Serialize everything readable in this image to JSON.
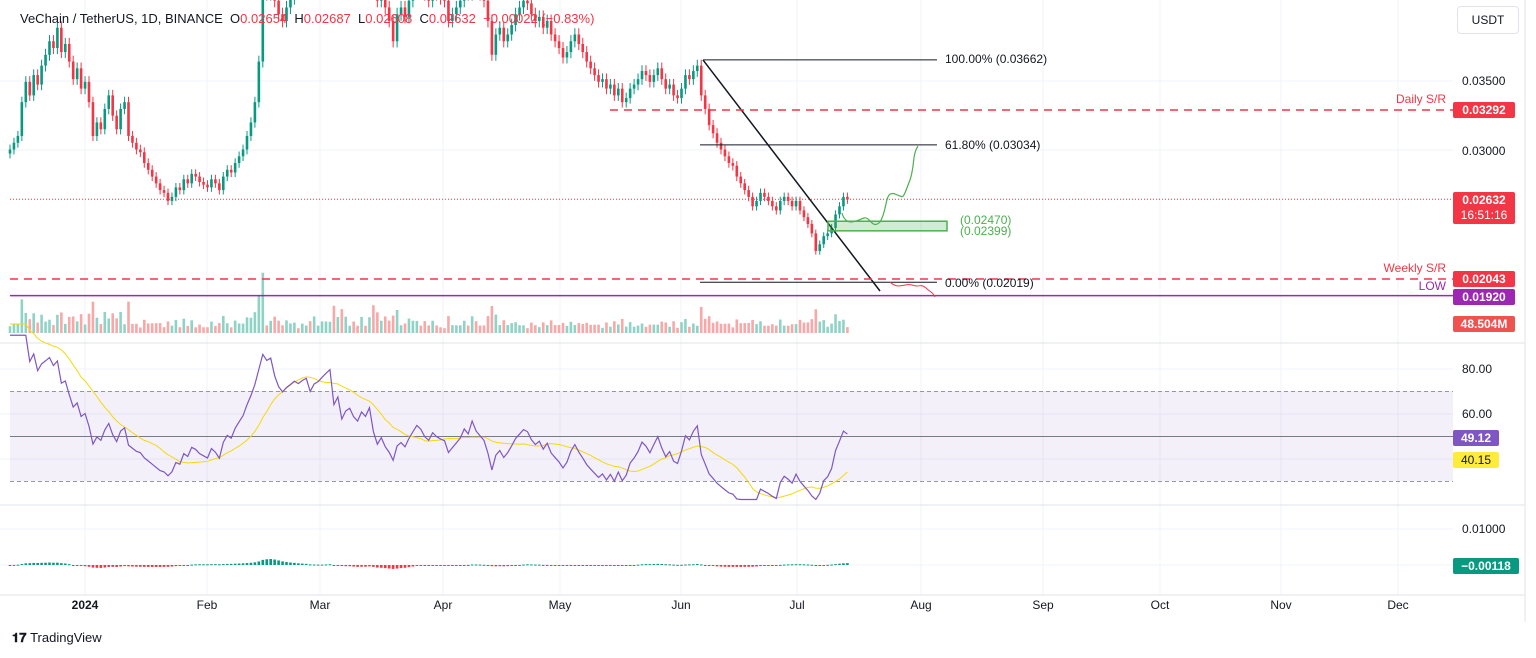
{
  "header": {
    "symbol": "VeChain / TetherUS, 1D, BINANCE",
    "o_label": "O",
    "o": "0.02654",
    "h_label": "H",
    "h": "0.02687",
    "l_label": "L",
    "l": "0.02608",
    "c_label": "C",
    "c": "0.02632",
    "change": "−0.00022 (−0.83%)"
  },
  "currency": "USDT",
  "price_axis": [
    "0.03500",
    "0.03000"
  ],
  "rsi_axis": [
    "80.00",
    "60.00"
  ],
  "macd_axis": [
    "0.01000"
  ],
  "months": [
    "2024",
    "Feb",
    "Mar",
    "Apr",
    "May",
    "Jun",
    "Jul",
    "Aug",
    "Sep",
    "Oct",
    "Nov",
    "Dec"
  ],
  "tags": {
    "daily_sr": "0.03292",
    "last_price": "0.02632",
    "countdown": "16:51:16",
    "weekly_sr": "0.02043",
    "low": "0.01920",
    "volume": "48.504M",
    "rsi": "49.12",
    "rsi_ma": "40.15",
    "macd": "−0.00118"
  },
  "annotations": {
    "daily_sr": "Daily S/R",
    "weekly_sr": "Weekly S/R",
    "low": "LOW",
    "fib100": "100.00% (0.03662)",
    "fib618": "61.80% (0.03034)",
    "fib0": "0.00% (0.02019)",
    "zone_top": "(0.02470)",
    "zone_bottom": "(0.02399)"
  },
  "branding": "TradingView",
  "colors": {
    "up": "#089981",
    "down": "#f23645",
    "rsi": "#7e57c2",
    "rsi_ma": "#f5d90a",
    "low": "#9c27b0",
    "zone": "#4caf50"
  },
  "chart_data": {
    "type": "candlestick",
    "date_range": [
      "2023-12-13",
      "2024-07-12"
    ],
    "levels": {
      "daily_sr": 0.03292,
      "weekly_sr": 0.02043,
      "low": 0.0192,
      "fib100": 0.03662,
      "fib618": 0.03034,
      "fib0": 0.02019,
      "zone": [
        0.02399,
        0.0247
      ],
      "last": 0.02632
    },
    "rsi_bands": [
      30,
      70,
      50
    ],
    "close": [
      0.03,
      0.0305,
      0.031,
      0.0335,
      0.035,
      0.034,
      0.0355,
      0.0348,
      0.0362,
      0.037,
      0.038,
      0.0375,
      0.039,
      0.0372,
      0.0378,
      0.0365,
      0.0352,
      0.036,
      0.0345,
      0.035,
      0.0335,
      0.031,
      0.032,
      0.0315,
      0.033,
      0.034,
      0.0325,
      0.0315,
      0.033,
      0.0335,
      0.031,
      0.0305,
      0.03,
      0.0298,
      0.029,
      0.0285,
      0.028,
      0.0275,
      0.027,
      0.0268,
      0.0262,
      0.0265,
      0.0272,
      0.027,
      0.0278,
      0.0275,
      0.0282,
      0.028,
      0.0276,
      0.0274,
      0.0272,
      0.0278,
      0.0275,
      0.027,
      0.028,
      0.0285,
      0.0283,
      0.029,
      0.0295,
      0.03,
      0.031,
      0.032,
      0.0335,
      0.0365,
      0.042,
      0.0415,
      0.0425,
      0.041,
      0.04,
      0.0395,
      0.0405,
      0.0412,
      0.042,
      0.0418,
      0.0425,
      0.043,
      0.042,
      0.0435,
      0.044,
      0.045,
      0.046,
      0.047,
      0.044,
      0.0455,
      0.043,
      0.0445,
      0.045,
      0.044,
      0.0435,
      0.045,
      0.0445,
      0.046,
      0.043,
      0.041,
      0.042,
      0.0405,
      0.0395,
      0.038,
      0.04,
      0.0405,
      0.0398,
      0.041,
      0.042,
      0.043,
      0.0425,
      0.0415,
      0.041,
      0.042,
      0.0415,
      0.0412,
      0.041,
      0.0395,
      0.04,
      0.0405,
      0.041,
      0.042,
      0.0415,
      0.043,
      0.042,
      0.0415,
      0.041,
      0.0395,
      0.037,
      0.0385,
      0.039,
      0.038,
      0.0385,
      0.0392,
      0.04,
      0.0405,
      0.041,
      0.0408,
      0.04,
      0.0395,
      0.0398,
      0.039,
      0.0395,
      0.0385,
      0.038,
      0.0375,
      0.0368,
      0.0372,
      0.038,
      0.0385,
      0.0378,
      0.0372,
      0.0365,
      0.036,
      0.0355,
      0.035,
      0.0352,
      0.0345,
      0.0348,
      0.034,
      0.0345,
      0.0335,
      0.0338,
      0.0345,
      0.0348,
      0.0352,
      0.0358,
      0.0355,
      0.035,
      0.0355,
      0.036,
      0.0352,
      0.0345,
      0.0348,
      0.034,
      0.0338,
      0.0345,
      0.0355,
      0.0352,
      0.0358,
      0.0362,
      0.034,
      0.033,
      0.0318,
      0.0312,
      0.0305,
      0.03,
      0.0295,
      0.029,
      0.0288,
      0.028,
      0.0275,
      0.027,
      0.0265,
      0.0258,
      0.0262,
      0.0268,
      0.0265,
      0.0262,
      0.0258,
      0.0255,
      0.0262,
      0.0265,
      0.0262,
      0.0258,
      0.0262,
      0.0255,
      0.025,
      0.0245,
      0.0238,
      0.0225,
      0.023,
      0.0236,
      0.0238,
      0.0242,
      0.0252,
      0.0258,
      0.0265,
      0.0263
    ]
  }
}
